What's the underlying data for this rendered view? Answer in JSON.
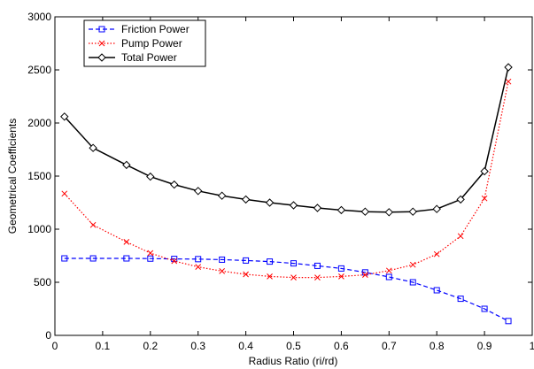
{
  "chart_data": {
    "type": "line",
    "title": "",
    "xlabel": "Radius Ratio (ri/rd)",
    "ylabel": "Geometrical Coefficients",
    "xlim": [
      0,
      1
    ],
    "ylim": [
      0,
      3000
    ],
    "xticks": [
      0,
      0.1,
      0.2,
      0.3,
      0.4,
      0.5,
      0.6,
      0.7,
      0.8,
      0.9,
      1
    ],
    "xtick_labels": [
      "0",
      "0.1",
      "0.2",
      "0.3",
      "0.4",
      "0.5",
      "0.6",
      "0.7",
      "0.8",
      "0.9",
      "1"
    ],
    "yticks": [
      0,
      500,
      1000,
      1500,
      2000,
      2500,
      3000
    ],
    "ytick_labels": [
      "0",
      "500",
      "1000",
      "1500",
      "2000",
      "2500",
      "3000"
    ],
    "grid": false,
    "legend_position": "top-left",
    "x": [
      0.02,
      0.08,
      0.15,
      0.2,
      0.25,
      0.3,
      0.35,
      0.4,
      0.45,
      0.5,
      0.55,
      0.6,
      0.65,
      0.7,
      0.75,
      0.8,
      0.85,
      0.9,
      0.95
    ],
    "series": [
      {
        "name": "Friction Power",
        "color": "#0000ff",
        "line_style": "dashed",
        "marker": "square",
        "values": [
          725,
          725,
          725,
          723,
          720,
          718,
          713,
          705,
          695,
          678,
          655,
          630,
          593,
          550,
          500,
          425,
          345,
          250,
          135
        ]
      },
      {
        "name": "Pump Power",
        "color": "#ff0000",
        "line_style": "dotted",
        "marker": "x",
        "values": [
          1335,
          1040,
          880,
          775,
          700,
          645,
          605,
          575,
          555,
          545,
          545,
          555,
          570,
          610,
          665,
          765,
          935,
          1290,
          2390
        ]
      },
      {
        "name": "Total Power",
        "color": "#000000",
        "line_style": "solid",
        "marker": "diamond",
        "values": [
          2060,
          1765,
          1605,
          1495,
          1420,
          1360,
          1315,
          1280,
          1250,
          1225,
          1200,
          1180,
          1165,
          1160,
          1165,
          1190,
          1280,
          1545,
          2525
        ]
      }
    ]
  }
}
